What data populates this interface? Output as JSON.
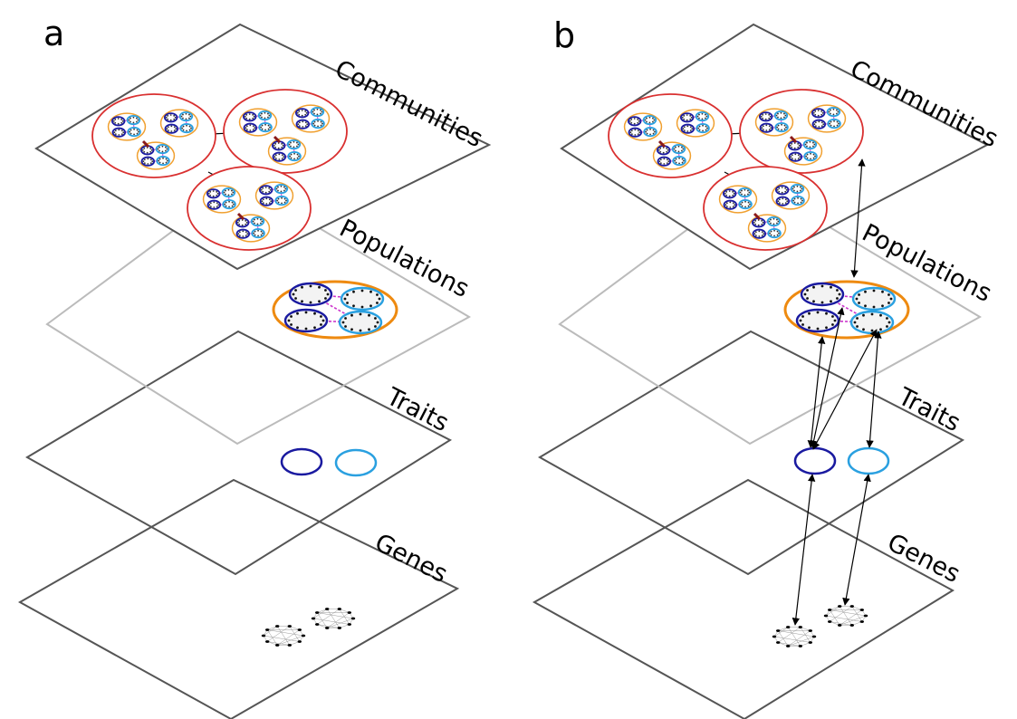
{
  "panels": [
    {
      "id": "a",
      "letter": "a",
      "layers": [
        {
          "key": "communities",
          "label": "Communities"
        },
        {
          "key": "populations",
          "label": "Populations"
        },
        {
          "key": "traits",
          "label": "Traits"
        },
        {
          "key": "genes",
          "label": "Genes"
        }
      ],
      "links": false
    },
    {
      "id": "b",
      "letter": "b",
      "layers": [
        {
          "key": "communities",
          "label": "Communities"
        },
        {
          "key": "populations",
          "label": "Populations"
        },
        {
          "key": "traits",
          "label": "Traits"
        },
        {
          "key": "genes",
          "label": "Genes"
        }
      ],
      "links": true
    }
  ],
  "colors": {
    "plane": "#555555",
    "plane_faded": "#bbbbbb",
    "community": "#d93030",
    "population": "#f0a030",
    "population_strong": "#ee8a10",
    "trait_dark": "#1a1aa0",
    "trait_light": "#2aa0e0",
    "gene_edge": "#999999",
    "gene_node": "#000000",
    "interaction": "#cc33cc",
    "link_arrow": "#000000"
  }
}
